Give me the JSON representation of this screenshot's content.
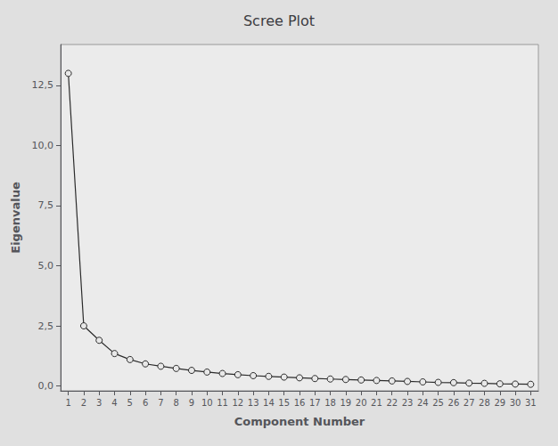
{
  "chart_data": {
    "type": "line",
    "title": "Scree Plot",
    "xlabel": "Component Number",
    "ylabel": "Eigenvalue",
    "x": [
      1,
      2,
      3,
      4,
      5,
      6,
      7,
      8,
      9,
      10,
      11,
      12,
      13,
      14,
      15,
      16,
      17,
      18,
      19,
      20,
      21,
      22,
      23,
      24,
      25,
      26,
      27,
      28,
      29,
      30,
      31
    ],
    "values": [
      13.0,
      2.5,
      1.9,
      1.35,
      1.1,
      0.92,
      0.82,
      0.73,
      0.65,
      0.58,
      0.52,
      0.47,
      0.43,
      0.4,
      0.37,
      0.34,
      0.31,
      0.29,
      0.27,
      0.25,
      0.23,
      0.21,
      0.19,
      0.17,
      0.15,
      0.14,
      0.12,
      0.11,
      0.09,
      0.08,
      0.07
    ],
    "color": "#2b2b2b",
    "marker": "circle",
    "xlim": [
      0.5,
      31.5
    ],
    "xticks": [
      1,
      2,
      3,
      4,
      5,
      6,
      7,
      8,
      9,
      10,
      11,
      12,
      13,
      14,
      15,
      16,
      17,
      18,
      19,
      20,
      21,
      22,
      23,
      24,
      25,
      26,
      27,
      28,
      29,
      30,
      31
    ],
    "ylim": [
      -0.2,
      14.2
    ],
    "yticks": [
      {
        "value": 0.0,
        "label": "0,0"
      },
      {
        "value": 2.5,
        "label": "2,5"
      },
      {
        "value": 5.0,
        "label": "5,0"
      },
      {
        "value": 7.5,
        "label": "7,5"
      },
      {
        "value": 10.0,
        "label": "10,0"
      },
      {
        "value": 12.5,
        "label": "12,5"
      }
    ],
    "grid": false
  }
}
